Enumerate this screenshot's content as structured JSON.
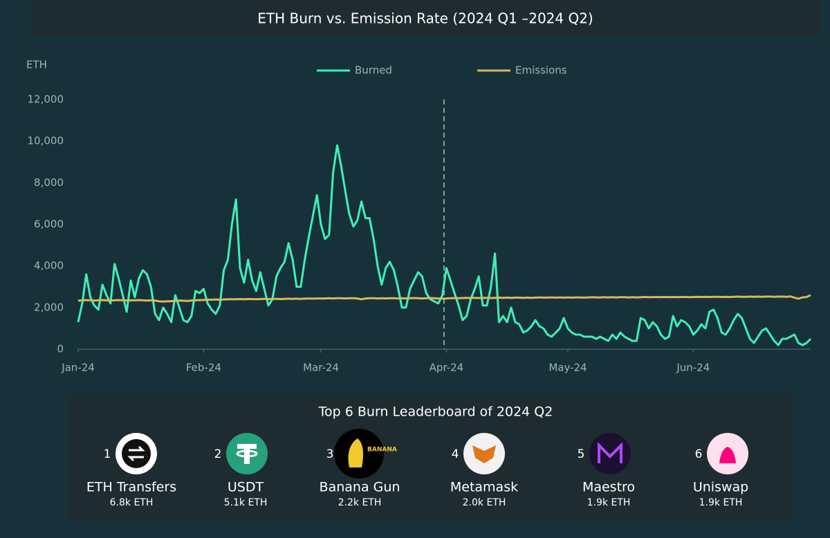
{
  "chart_data": {
    "type": "line",
    "title": "ETH Burn vs. Emission Rate (2024 Q1 –2024 Q2)",
    "y_label": "ETH",
    "categories": [
      "Jan-24",
      null,
      null,
      null,
      null,
      null,
      null,
      null,
      null,
      null,
      null,
      null,
      null,
      null,
      null,
      null,
      null,
      null,
      null,
      null,
      null,
      null,
      null,
      null,
      null,
      null,
      null,
      null,
      null,
      null,
      null,
      "Feb-24",
      null,
      null,
      null,
      null,
      null,
      null,
      null,
      null,
      null,
      null,
      null,
      null,
      null,
      null,
      null,
      null,
      null,
      null,
      null,
      null,
      null,
      null,
      null,
      null,
      null,
      null,
      null,
      null,
      "Mar-24",
      null,
      null,
      null,
      null,
      null,
      null,
      null,
      null,
      null,
      null,
      null,
      null,
      null,
      null,
      null,
      null,
      null,
      null,
      null,
      null,
      null,
      null,
      null,
      null,
      null,
      null,
      null,
      null,
      null,
      null,
      "Apr-24",
      null,
      null,
      null,
      null,
      null,
      null,
      null,
      null,
      null,
      null,
      null,
      null,
      null,
      null,
      null,
      null,
      null,
      null,
      null,
      null,
      null,
      null,
      null,
      null,
      null,
      null,
      null,
      null,
      null,
      "May-24",
      null,
      null,
      null,
      null,
      null,
      null,
      null,
      null,
      null,
      null,
      null,
      null,
      null,
      null,
      null,
      null,
      null,
      null,
      null,
      null,
      null,
      null,
      null,
      null,
      null,
      null,
      null,
      null,
      null,
      null,
      "Jun-24",
      null,
      null,
      null,
      null,
      null,
      null,
      null,
      null,
      null,
      null,
      null,
      null,
      null,
      null,
      null,
      null,
      null,
      null,
      null,
      null,
      null,
      null,
      null,
      null,
      null,
      null,
      null,
      null,
      null
    ],
    "series": [
      {
        "name": "Burned",
        "color": "#3ef0b6",
        "values": [
          1300,
          2200,
          3600,
          2500,
          2100,
          1900,
          3100,
          2600,
          2200,
          4100,
          3400,
          2600,
          1800,
          3300,
          2500,
          3400,
          3800,
          3600,
          3000,
          1700,
          1400,
          2000,
          1700,
          1300,
          2600,
          2000,
          1400,
          1300,
          1600,
          2800,
          2700,
          2900,
          2200,
          1900,
          1700,
          2100,
          3800,
          4300,
          6000,
          7200,
          3900,
          3200,
          4300,
          3300,
          2800,
          3700,
          2900,
          2100,
          2400,
          3500,
          3900,
          4200,
          5100,
          4300,
          3000,
          3000,
          4300,
          5400,
          6400,
          7400,
          6000,
          5300,
          5500,
          8500,
          9800,
          8800,
          7600,
          6500,
          5900,
          6200,
          7100,
          6300,
          6300,
          5300,
          4000,
          3100,
          3900,
          4200,
          3800,
          3000,
          2000,
          2000,
          2900,
          3300,
          3700,
          3500,
          2700,
          2400,
          2300,
          2200,
          2600,
          3900,
          3300,
          2700,
          2100,
          1400,
          1600,
          2400,
          2900,
          3500,
          2100,
          2100,
          3000,
          4600,
          1300,
          1600,
          1300,
          2000,
          1300,
          1200,
          800,
          900,
          1100,
          1400,
          1100,
          1000,
          700,
          600,
          800,
          1000,
          1500,
          1000,
          800,
          700,
          700,
          600,
          600,
          600,
          500,
          600,
          500,
          400,
          700,
          500,
          800,
          600,
          500,
          400,
          400,
          1500,
          1400,
          1000,
          1300,
          1100,
          700,
          500,
          600,
          1600,
          1100,
          1400,
          1300,
          1100,
          700,
          900,
          1200,
          1000,
          1800,
          1900,
          1500,
          800,
          700,
          1000,
          1400,
          1700,
          1500,
          1000,
          500,
          300,
          600,
          900,
          1000,
          700,
          400,
          200,
          500,
          500,
          600,
          700,
          300,
          200,
          300,
          500
        ]
      },
      {
        "name": "Emissions",
        "color": "#d8b85c",
        "values": [
          2330,
          2350,
          2360,
          2350,
          2340,
          2350,
          2360,
          2350,
          2340,
          2350,
          2360,
          2350,
          2340,
          2350,
          2350,
          2360,
          2350,
          2340,
          2350,
          2340,
          2300,
          2290,
          2300,
          2310,
          2320,
          2340,
          2330,
          2320,
          2340,
          2350,
          2360,
          2370,
          2380,
          2380,
          2390,
          2380,
          2390,
          2400,
          2400,
          2400,
          2410,
          2400,
          2410,
          2410,
          2400,
          2410,
          2420,
          2410,
          2420,
          2420,
          2410,
          2420,
          2430,
          2420,
          2430,
          2420,
          2430,
          2440,
          2430,
          2440,
          2440,
          2440,
          2450,
          2440,
          2450,
          2450,
          2440,
          2450,
          2450,
          2440,
          2400,
          2440,
          2450,
          2450,
          2440,
          2450,
          2440,
          2450,
          2450,
          2440,
          2450,
          2440,
          2450,
          2460,
          2450,
          2440,
          2450,
          2460,
          2450,
          2440,
          2430,
          2440,
          2450,
          2460,
          2450,
          2460,
          2470,
          2460,
          2470,
          2460,
          2470,
          2470,
          2460,
          2470,
          2480,
          2470,
          2480,
          2470,
          2480,
          2480,
          2470,
          2480,
          2470,
          2480,
          2490,
          2480,
          2480,
          2490,
          2480,
          2490,
          2480,
          2490,
          2480,
          2490,
          2490,
          2480,
          2490,
          2500,
          2490,
          2490,
          2500,
          2490,
          2500,
          2490,
          2500,
          2500,
          2490,
          2500,
          2490,
          2500,
          2510,
          2500,
          2500,
          2510,
          2500,
          2510,
          2500,
          2510,
          2500,
          2510,
          2510,
          2500,
          2510,
          2520,
          2510,
          2520,
          2510,
          2520,
          2520,
          2510,
          2520,
          2510,
          2520,
          2530,
          2520,
          2520,
          2530,
          2520,
          2530,
          2520,
          2530,
          2530,
          2520,
          2530,
          2530,
          2520,
          2540,
          2480,
          2430,
          2490,
          2510,
          2600
        ]
      }
    ],
    "ylim": [
      0,
      12000
    ],
    "yticks": [
      0,
      {
        "value": 2000,
        "label": "2,000"
      },
      {
        "value": 4000,
        "label": "4,000"
      },
      {
        "value": 6000,
        "label": "6,000"
      },
      {
        "value": 8000,
        "label": "8,000"
      },
      {
        "value": 10000,
        "label": "10,000"
      },
      {
        "value": 12000,
        "label": "12,000"
      }
    ],
    "grid": false,
    "legend": "top"
  },
  "leaderboard": {
    "title": "Top 6 Burn Leaderboard of 2024 Q2",
    "items": [
      {
        "rank": 1,
        "name": "ETH Transfers",
        "amount": "6.8k ETH"
      },
      {
        "rank": 2,
        "name": "USDT",
        "amount": "5.1k ETH"
      },
      {
        "rank": 3,
        "name": "Banana Gun",
        "amount": "2.2k ETH"
      },
      {
        "rank": 4,
        "name": "Metamask",
        "amount": "2.0k ETH"
      },
      {
        "rank": 5,
        "name": "Maestro",
        "amount": "1.9k ETH"
      },
      {
        "rank": 6,
        "name": "Uniswap",
        "amount": "1.9k ETH"
      }
    ]
  }
}
